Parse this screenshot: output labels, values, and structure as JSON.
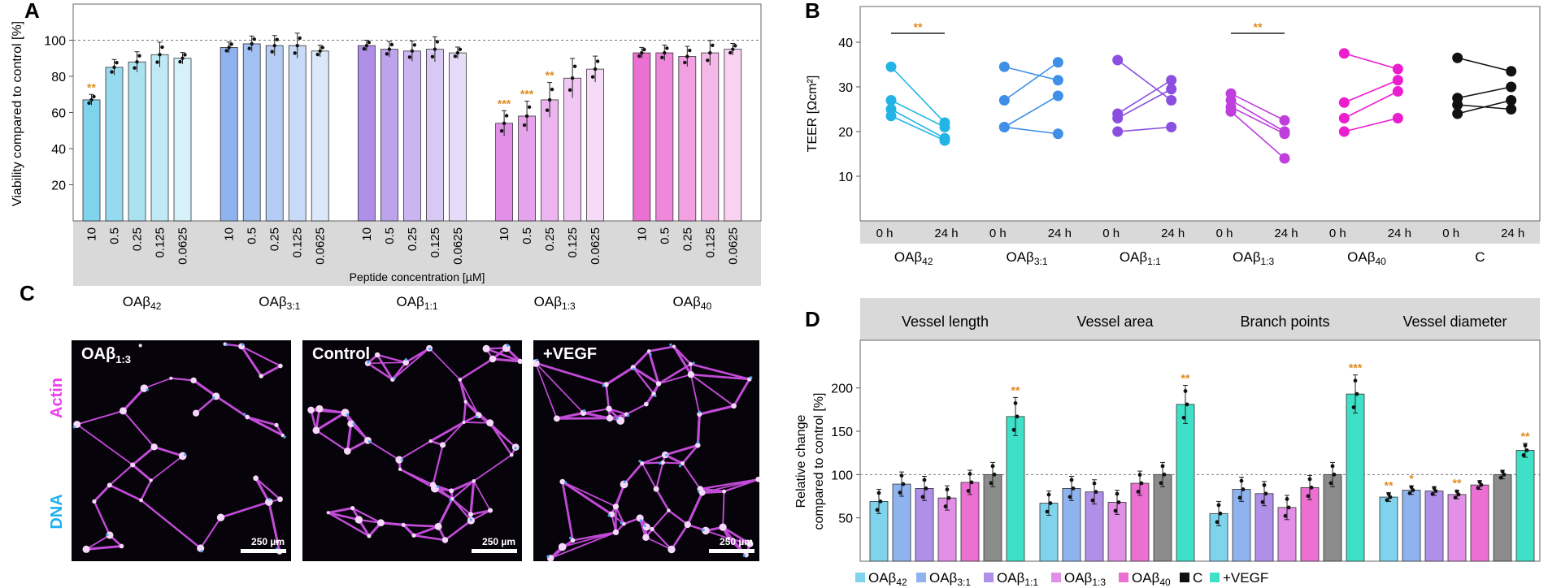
{
  "colors": {
    "o42": "#7fd3ec",
    "o31": "#8fb3ef",
    "o11": "#b08fe8",
    "o13": "#e28fe8",
    "o40": "#ec6fd2",
    "c": "#8c8c8c",
    "vegf": "#3ee0c8",
    "teer42": "#23b4e6",
    "teer31": "#3f8fe8",
    "teer11": "#8a4fe0",
    "teer13": "#bf3fdc",
    "teer40": "#ec1ccf",
    "teerC": "#111111",
    "sig": "#e08a1e",
    "strip": "#d9d9d9"
  },
  "panels": {
    "a": "A",
    "b": "B",
    "c": "C",
    "d": "D"
  },
  "chart_data": [
    {
      "id": "A",
      "type": "bar",
      "ylabel": "Viability compared to control [%]",
      "ylim": [
        0,
        120
      ],
      "yticks": [
        20,
        40,
        60,
        80,
        100
      ],
      "reference_line": 100,
      "xlabel": "Peptide concentration [µM]",
      "concentrations": [
        "10",
        "0.5",
        "0.25",
        "0.125",
        "0.0625"
      ],
      "groups": [
        {
          "name": "OAβ",
          "sub": "42",
          "values": [
            67,
            85,
            88,
            92,
            90
          ],
          "sig": [
            "**",
            "",
            "",
            "",
            ""
          ]
        },
        {
          "name": "OAβ",
          "sub": "3:1",
          "values": [
            96,
            98,
            97,
            97,
            94
          ],
          "sig": [
            "",
            "",
            "",
            "",
            ""
          ]
        },
        {
          "name": "OAβ",
          "sub": "1:1",
          "values": [
            97,
            95,
            94,
            95,
            93
          ],
          "sig": [
            "",
            "",
            "",
            "",
            ""
          ]
        },
        {
          "name": "OAβ",
          "sub": "1:3",
          "values": [
            54,
            58,
            67,
            79,
            84
          ],
          "sig": [
            "***",
            "***",
            "**",
            "",
            ""
          ]
        },
        {
          "name": "OAβ",
          "sub": "40",
          "values": [
            93,
            93,
            91,
            93,
            95
          ],
          "sig": [
            "",
            "",
            "",
            "",
            ""
          ]
        }
      ]
    },
    {
      "id": "B",
      "type": "line",
      "ylabel": "TEER [Ωcm²]",
      "ylim": [
        0,
        48
      ],
      "yticks": [
        10,
        20,
        30,
        40
      ],
      "timepoints": [
        "0 h",
        "24 h"
      ],
      "groups": [
        {
          "name": "OAβ",
          "sub": "42",
          "pairs": [
            [
              34.5,
              22
            ],
            [
              27,
              21
            ],
            [
              25,
              18.5
            ],
            [
              23.5,
              18
            ]
          ],
          "sig": "**"
        },
        {
          "name": "OAβ",
          "sub": "3:1",
          "pairs": [
            [
              34.5,
              31.5
            ],
            [
              27,
              35.5
            ],
            [
              21,
              28
            ],
            [
              21,
              19.5
            ]
          ],
          "sig": ""
        },
        {
          "name": "OAβ",
          "sub": "1:1",
          "pairs": [
            [
              36,
              27
            ],
            [
              24,
              31.5
            ],
            [
              23,
              29.5
            ],
            [
              20,
              21
            ]
          ],
          "sig": ""
        },
        {
          "name": "OAβ",
          "sub": "1:3",
          "pairs": [
            [
              28.5,
              22.5
            ],
            [
              27,
              20
            ],
            [
              25.5,
              19.5
            ],
            [
              24.5,
              14
            ]
          ],
          "sig": "**"
        },
        {
          "name": "OAβ",
          "sub": "40",
          "pairs": [
            [
              37.5,
              34
            ],
            [
              26.5,
              31.5
            ],
            [
              23,
              29
            ],
            [
              20,
              23
            ]
          ],
          "sig": ""
        },
        {
          "name": "C",
          "sub": "",
          "pairs": [
            [
              36.5,
              33.5
            ],
            [
              27.5,
              30
            ],
            [
              26,
              25
            ],
            [
              24,
              27
            ]
          ],
          "sig": ""
        }
      ]
    },
    {
      "id": "D",
      "type": "bar",
      "ylabel": "Relative change compared to control [%]",
      "ylim": [
        0,
        255
      ],
      "yticks": [
        50,
        100,
        150,
        200
      ],
      "reference_line": 100,
      "series": [
        "OAβ42",
        "OAβ3:1",
        "OAβ1:1",
        "OAβ1:3",
        "OAβ40",
        "C",
        "+VEGF"
      ],
      "legend": [
        {
          "name": "OAβ",
          "sub": "42"
        },
        {
          "name": "OAβ",
          "sub": "3:1"
        },
        {
          "name": "OAβ",
          "sub": "1:1"
        },
        {
          "name": "OAβ",
          "sub": "1:3"
        },
        {
          "name": "OAβ",
          "sub": "40"
        },
        {
          "name": "C",
          "sub": ""
        },
        {
          "name": "+VEGF",
          "sub": ""
        }
      ],
      "categories": [
        {
          "name": "Vessel length",
          "values": [
            69,
            89,
            84,
            73,
            91,
            100,
            167
          ],
          "sig": [
            "",
            "",
            "",
            "",
            "",
            "",
            "**"
          ]
        },
        {
          "name": "Vessel area",
          "values": [
            67,
            84,
            80,
            68,
            90,
            100,
            181
          ],
          "sig": [
            "",
            "",
            "",
            "",
            "",
            "",
            "**"
          ]
        },
        {
          "name": "Branch points",
          "values": [
            55,
            83,
            78,
            62,
            85,
            100,
            193
          ],
          "sig": [
            "",
            "",
            "",
            "",
            "",
            "",
            "***"
          ]
        },
        {
          "name": "Vessel diameter",
          "values": [
            74,
            82,
            81,
            77,
            88,
            100,
            128
          ],
          "sig": [
            "**",
            "*",
            "",
            "**",
            "",
            "",
            "**"
          ]
        }
      ]
    }
  ],
  "micrographs": {
    "stain_actin": "Actin",
    "stain_dna": "DNA",
    "images": [
      {
        "label": "OAβ",
        "sub": "1:3",
        "scale": "250 µm"
      },
      {
        "label": "Control",
        "sub": "",
        "scale": "250 µm"
      },
      {
        "label": "+VEGF",
        "sub": "",
        "scale": "250 µm"
      }
    ]
  }
}
